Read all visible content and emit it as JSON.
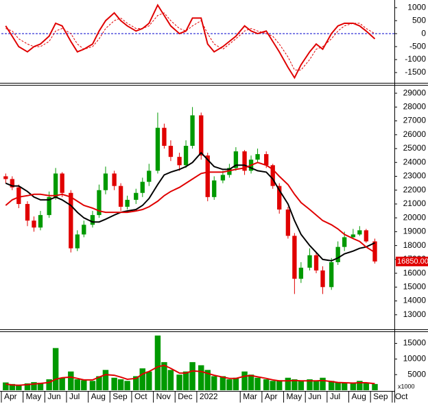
{
  "chart_data": [
    {
      "type": "line",
      "x": [
        0.2,
        0.5,
        0.8,
        1.2,
        1.5,
        1.8,
        2.2,
        2.5,
        2.8,
        3.2,
        3.5,
        3.8,
        4.2,
        4.5,
        4.8,
        5.2,
        5.5,
        5.8,
        6.2,
        6.5,
        6.8,
        7.2,
        7.5,
        7.8,
        8.2,
        8.5,
        8.8,
        9.2,
        9.5,
        9.8,
        10.2,
        10.5,
        10.8,
        11.2,
        11.5,
        11.8,
        12.2,
        12.5,
        12.8,
        13.2,
        13.5,
        13.8,
        14.2,
        14.5,
        14.8,
        15.2,
        15.5,
        15.8,
        16.2,
        16.5,
        16.8,
        17.2
      ],
      "xlim": [
        0,
        18.1
      ],
      "ylim": [
        -1870,
        1270
      ],
      "yticks": [
        1000,
        500,
        0,
        -500,
        -1000,
        -1500
      ],
      "reference_line": 0,
      "reference_color": "#0000cc",
      "series": [
        {
          "color": "#e00000",
          "dashed": false,
          "values": [
            300,
            -100,
            -500,
            -700,
            -500,
            -400,
            -100,
            400,
            300,
            -300,
            -700,
            -600,
            -400,
            100,
            500,
            800,
            500,
            300,
            100,
            200,
            400,
            1100,
            700,
            300,
            0,
            100,
            600,
            600,
            -400,
            -700,
            -500,
            -300,
            -100,
            300,
            100,
            0,
            100,
            -300,
            -700,
            -1300,
            -1700,
            -1200,
            -700,
            -400,
            -600,
            0,
            300,
            400,
            400,
            300,
            100,
            -200
          ]
        },
        {
          "color": "#e00000",
          "dashed": true,
          "values": [
            200,
            100,
            -200,
            -400,
            -500,
            -500,
            -300,
            100,
            200,
            0,
            -400,
            -600,
            -500,
            -200,
            200,
            500,
            600,
            400,
            200,
            200,
            300,
            700,
            800,
            500,
            200,
            100,
            300,
            500,
            0,
            -400,
            -600,
            -400,
            -200,
            100,
            200,
            100,
            0,
            -100,
            -400,
            -900,
            -1400,
            -1400,
            -1000,
            -600,
            -500,
            -200,
            100,
            300,
            400,
            400,
            200,
            0
          ]
        }
      ]
    },
    {
      "type": "candlestick",
      "x": [
        0.2,
        0.5,
        0.8,
        1.2,
        1.5,
        1.8,
        2.2,
        2.5,
        2.8,
        3.2,
        3.5,
        3.8,
        4.2,
        4.5,
        4.8,
        5.2,
        5.5,
        5.8,
        6.2,
        6.5,
        6.8,
        7.2,
        7.5,
        7.8,
        8.2,
        8.5,
        8.8,
        9.2,
        9.5,
        9.8,
        10.2,
        10.5,
        10.8,
        11.2,
        11.5,
        11.8,
        12.2,
        12.5,
        12.8,
        13.2,
        13.5,
        13.8,
        14.2,
        14.5,
        14.8,
        15.2,
        15.5,
        15.8,
        16.2,
        16.5,
        16.8,
        17.2
      ],
      "xlim": [
        0,
        18.1
      ],
      "ylim": [
        12000,
        29500
      ],
      "yticks": [
        29000,
        28000,
        27000,
        26000,
        25000,
        24000,
        23000,
        22000,
        21000,
        20000,
        19000,
        18000,
        17000,
        16000,
        15000,
        14000,
        13000
      ],
      "up_color": "#009900",
      "down_color": "#e00000",
      "open": [
        23000,
        22800,
        22200,
        21000,
        19800,
        19300,
        20200,
        21500,
        23200,
        21800,
        17800,
        18800,
        19500,
        20200,
        22000,
        23200,
        22300,
        20800,
        21300,
        21800,
        22600,
        23400,
        26500,
        25200,
        24400,
        23800,
        25200,
        27400,
        24500,
        21500,
        22700,
        23100,
        23600,
        24800,
        23400,
        24200,
        24600,
        23800,
        22300,
        20600,
        18700,
        15600,
        16400,
        17300,
        16200,
        15000,
        16800,
        17900,
        18600,
        18800,
        19100,
        18300
      ],
      "high": [
        23200,
        23000,
        22400,
        21200,
        20100,
        20500,
        21900,
        23600,
        23300,
        22000,
        19100,
        19800,
        20500,
        22400,
        23700,
        23400,
        22500,
        21600,
        22100,
        22900,
        23900,
        27600,
        26800,
        25600,
        24700,
        25600,
        28000,
        27600,
        24700,
        23000,
        23400,
        23900,
        25100,
        24900,
        24500,
        25000,
        24800,
        23900,
        22500,
        20800,
        18900,
        16800,
        17800,
        17500,
        16500,
        17100,
        18300,
        19000,
        19200,
        19400,
        19200,
        18500
      ],
      "low": [
        22500,
        22000,
        20700,
        19400,
        19000,
        19100,
        20000,
        21300,
        21500,
        17500,
        17600,
        18600,
        19300,
        20000,
        21700,
        22000,
        20500,
        20600,
        21000,
        21500,
        22300,
        23200,
        25000,
        24100,
        23400,
        23600,
        25000,
        24200,
        21200,
        21300,
        22500,
        22900,
        23400,
        23100,
        23200,
        24000,
        23600,
        22100,
        20300,
        18500,
        14500,
        15300,
        16200,
        16000,
        14500,
        14800,
        16600,
        17600,
        18500,
        18700,
        18200,
        16700
      ],
      "close": [
        22800,
        22200,
        21000,
        19800,
        19300,
        20200,
        21500,
        23200,
        21800,
        17800,
        18800,
        19500,
        20200,
        22000,
        23200,
        22300,
        20800,
        21300,
        21800,
        22600,
        23400,
        26500,
        25200,
        24400,
        23800,
        25200,
        27400,
        24500,
        21500,
        22700,
        23100,
        23600,
        24800,
        23400,
        24200,
        24600,
        23800,
        22300,
        20600,
        18700,
        15600,
        16400,
        17300,
        16200,
        15000,
        16800,
        17900,
        18600,
        18800,
        19100,
        18300,
        16850
      ],
      "price_tag": "16850.00",
      "price_tag_color": "#e00000",
      "series": [
        {
          "color": "#000000",
          "values": [
            22500,
            22300,
            22300,
            21900,
            21500,
            21300,
            21300,
            21500,
            21300,
            20900,
            20400,
            20000,
            19700,
            19700,
            19900,
            20200,
            20400,
            20500,
            20600,
            20900,
            21400,
            22400,
            23100,
            23300,
            23500,
            23700,
            24000,
            24700,
            24200,
            23700,
            23500,
            23500,
            23800,
            23800,
            23600,
            23400,
            23300,
            22800,
            22000,
            21000,
            19800,
            18800,
            18000,
            17500,
            17000,
            16900,
            17100,
            17400,
            17600,
            17800,
            17900,
            18200
          ]
        },
        {
          "color": "#e00000",
          "values": [
            20900,
            21300,
            21500,
            21600,
            21700,
            21700,
            21600,
            21600,
            21700,
            21500,
            21200,
            20900,
            20700,
            20500,
            20400,
            20400,
            20400,
            20400,
            20500,
            20600,
            20800,
            21200,
            21600,
            21900,
            22200,
            22500,
            22800,
            23200,
            23300,
            23300,
            23300,
            23400,
            23500,
            23600,
            23800,
            24000,
            23800,
            23500,
            23000,
            22400,
            21700,
            21100,
            20600,
            20200,
            19800,
            19500,
            19200,
            18800,
            18500,
            18300,
            17900,
            17500
          ]
        }
      ]
    },
    {
      "type": "bar",
      "x": [
        0.2,
        0.5,
        0.8,
        1.2,
        1.5,
        1.8,
        2.2,
        2.5,
        2.8,
        3.2,
        3.5,
        3.8,
        4.2,
        4.5,
        4.8,
        5.2,
        5.5,
        5.8,
        6.2,
        6.5,
        6.8,
        7.2,
        7.5,
        7.8,
        8.2,
        8.5,
        8.8,
        9.2,
        9.5,
        9.8,
        10.2,
        10.5,
        10.8,
        11.2,
        11.5,
        11.8,
        12.2,
        12.5,
        12.8,
        13.2,
        13.5,
        13.8,
        14.2,
        14.5,
        14.8,
        15.2,
        15.5,
        15.8,
        16.2,
        16.5,
        16.8,
        17.2
      ],
      "xlim": [
        0,
        18.1
      ],
      "ylim": [
        0,
        18400
      ],
      "yticks": [
        15000,
        10000,
        5000
      ],
      "unit_label": "x1000",
      "color": "#009900",
      "values": [
        2500,
        2000,
        1800,
        2200,
        2600,
        2400,
        3500,
        13500,
        4000,
        6000,
        3500,
        3200,
        3000,
        4500,
        6500,
        4000,
        3500,
        3000,
        4500,
        7000,
        6000,
        17500,
        9000,
        6500,
        5000,
        6000,
        9000,
        8000,
        6500,
        4500,
        4500,
        3500,
        4000,
        6000,
        5000,
        4000,
        3500,
        3000,
        3200,
        4000,
        3500,
        3000,
        3500,
        3000,
        4000,
        3000,
        2500,
        2500,
        2500,
        3000,
        2500,
        2000
      ],
      "series": [
        {
          "color": "#e00000",
          "values": [
            2000,
            1700,
            1600,
            1800,
            2000,
            2200,
            2500,
            3500,
            4000,
            4200,
            3800,
            3300,
            3300,
            4200,
            5000,
            4800,
            4200,
            3500,
            3800,
            5200,
            6000,
            7500,
            8000,
            7000,
            5500,
            5500,
            6200,
            6000,
            5400,
            4800,
            4200,
            3800,
            3800,
            4500,
            4700,
            4300,
            3800,
            3300,
            3000,
            3000,
            3100,
            3000,
            3000,
            3000,
            3100,
            2800,
            2500,
            2400,
            2300,
            2400,
            2400,
            2100
          ]
        }
      ],
      "xticks": [
        {
          "value": 0,
          "label": "Apr"
        },
        {
          "value": 1,
          "label": "May"
        },
        {
          "value": 2,
          "label": "Jun"
        },
        {
          "value": 3,
          "label": "Jul"
        },
        {
          "value": 4,
          "label": "Aug"
        },
        {
          "value": 5,
          "label": "Sep"
        },
        {
          "value": 6,
          "label": "Oct"
        },
        {
          "value": 7,
          "label": "Nov"
        },
        {
          "value": 8,
          "label": "Dec"
        },
        {
          "value": 9,
          "label": "2022"
        },
        {
          "value": 11,
          "label": "Mar"
        },
        {
          "value": 12,
          "label": "Apr"
        },
        {
          "value": 13,
          "label": "May"
        },
        {
          "value": 14,
          "label": "Jun"
        },
        {
          "value": 15,
          "label": "Jul"
        },
        {
          "value": 16,
          "label": "Aug"
        },
        {
          "value": 17,
          "label": "Sep"
        },
        {
          "value": 18,
          "label": "Oct"
        }
      ]
    }
  ]
}
